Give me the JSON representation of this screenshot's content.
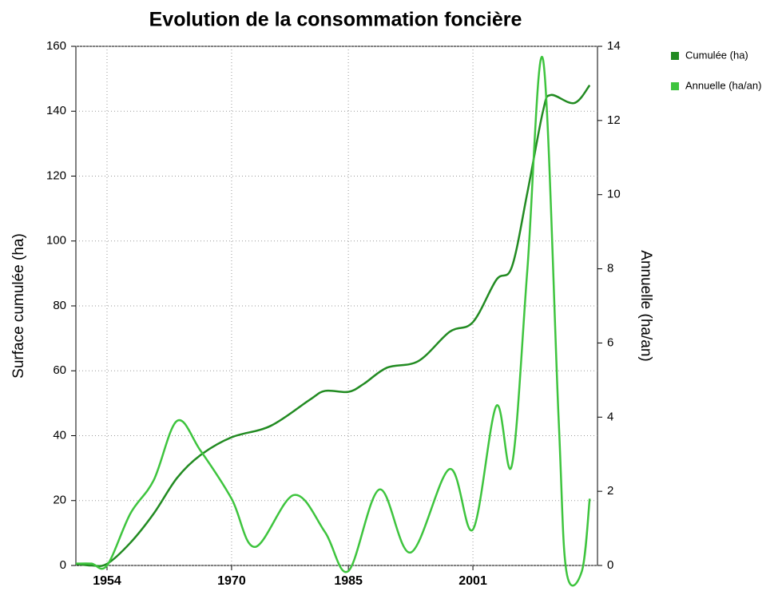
{
  "chart_data": {
    "type": "line",
    "title": "Evolution de la consommation foncière",
    "y_label": "Surface cumulée (ha)",
    "y2_label": "Annuelle (ha/an)",
    "xlim": [
      1950,
      2017
    ],
    "xticks": [
      1954,
      1970,
      1985,
      2001
    ],
    "ylim": [
      0,
      160
    ],
    "yticks": [
      0,
      20,
      40,
      60,
      80,
      100,
      120,
      140,
      160
    ],
    "y2lim": [
      0,
      14
    ],
    "y2ticks": [
      0,
      2,
      4,
      6,
      8,
      10,
      12,
      14
    ],
    "grid": true,
    "legend": "top-right",
    "series": [
      {
        "name": "Cumulée (ha)",
        "color": "#228b22",
        "x": [
          1950,
          1952,
          1954,
          1957,
          1960,
          1963,
          1966,
          1970,
          1975,
          1980,
          1982,
          1985,
          1987,
          1990,
          1994,
          1998,
          2001,
          2004,
          2006,
          2008,
          2010,
          2011,
          2014,
          2016
        ],
        "values": [
          0.5,
          0,
          0.5,
          7,
          16,
          27,
          34,
          39.5,
          43,
          51,
          53.8,
          53.5,
          56,
          61,
          63,
          72,
          75,
          88,
          92,
          115,
          140,
          145,
          142.5,
          148
        ]
      },
      {
        "name": "Annuelle (ha/an)",
        "color": "#3ec43e",
        "axis": "y2",
        "x": [
          1950,
          1952,
          1954,
          1957,
          1960,
          1963,
          1966,
          1970,
          1973,
          1978,
          1982,
          1985,
          1989,
          1993,
          1998,
          2001,
          2004,
          2006,
          2008,
          2010,
          2012,
          2013,
          2015,
          2016
        ],
        "values": [
          0.05,
          0.05,
          0,
          1.4,
          2.3,
          3.9,
          3.1,
          1.8,
          0.5,
          1.9,
          0.9,
          -0.15,
          2.05,
          0.35,
          2.6,
          0.97,
          4.3,
          2.7,
          8,
          13.65,
          4,
          -0.15,
          -0.15,
          1.8
        ]
      }
    ]
  }
}
